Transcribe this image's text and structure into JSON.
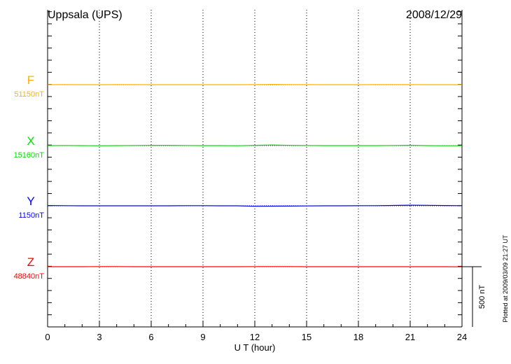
{
  "chart_data": {
    "type": "line",
    "title": "Uppsala (UPS)",
    "date": "2008/12/29",
    "xlabel": "U T (hour)",
    "xlim": [
      0,
      24
    ],
    "xticks": [
      "0",
      "3",
      "6",
      "9",
      "12",
      "15",
      "18",
      "21",
      "24"
    ],
    "grid": "vertical dotted at every 3 hours",
    "scale_bar": "500 nT",
    "footnote": "Plotted at 2009/03/09 21:27 UT",
    "x": [
      0,
      1,
      2,
      3,
      4,
      5,
      6,
      7,
      8,
      9,
      10,
      11,
      12,
      13,
      14,
      15,
      16,
      17,
      18,
      19,
      20,
      21,
      22,
      23,
      24
    ],
    "series": [
      {
        "name": "F",
        "baseline_label": "51150nT",
        "color": "#ffb000",
        "baseline": 51150,
        "values": [
          51150,
          51151,
          51150,
          51150,
          51151,
          51151,
          51150,
          51150,
          51150,
          51150,
          51150,
          51150,
          51151,
          51152,
          51151,
          51151,
          51150,
          51150,
          51150,
          51151,
          51151,
          51151,
          51150,
          51150,
          51150
        ]
      },
      {
        "name": "X",
        "baseline_label": "15160nT",
        "color": "#00e000",
        "baseline": 15160,
        "values": [
          15160,
          15161,
          15160,
          15159,
          15160,
          15161,
          15162,
          15162,
          15161,
          15160,
          15160,
          15159,
          15162,
          15165,
          15162,
          15161,
          15160,
          15160,
          15160,
          15160,
          15161,
          15163,
          15160,
          15159,
          15159
        ]
      },
      {
        "name": "Y",
        "baseline_label": "1150nT",
        "color": "#0000ff",
        "baseline": 1150,
        "values": [
          1152,
          1151,
          1150,
          1150,
          1150,
          1150,
          1150,
          1150,
          1151,
          1151,
          1150,
          1150,
          1146,
          1147,
          1148,
          1149,
          1150,
          1150,
          1151,
          1151,
          1153,
          1155,
          1154,
          1152,
          1151
        ]
      },
      {
        "name": "Z",
        "baseline_label": "48840nT",
        "color": "#ff0000",
        "baseline": 48840,
        "values": [
          48840,
          48840,
          48840,
          48841,
          48841,
          48840,
          48840,
          48840,
          48840,
          48840,
          48840,
          48840,
          48841,
          48841,
          48841,
          48840,
          48840,
          48840,
          48840,
          48840,
          48840,
          48840,
          48840,
          48840,
          48839
        ]
      }
    ]
  }
}
